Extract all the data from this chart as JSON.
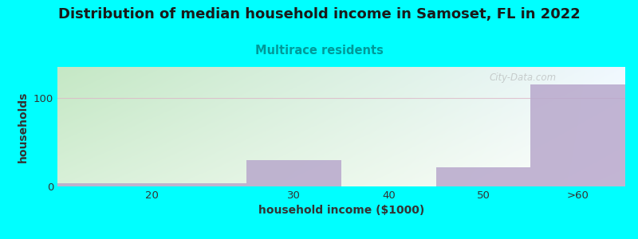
{
  "title": "Distribution of median household income in Samoset, FL in 2022",
  "subtitle": "Multirace residents",
  "xlabel": "household income ($1000)",
  "ylabel": "households",
  "categories": [
    "20",
    "30",
    "40",
    "50",
    ">60"
  ],
  "values": [
    4,
    30,
    0,
    22,
    115
  ],
  "bar_color": "#b8a8cc",
  "bar_alpha": 0.85,
  "bg_color": "#00ffff",
  "plot_bg_top_left": "#c5e8c5",
  "plot_bg_bottom_right": "#f5f5ff",
  "grid_color": "#ddb8c8",
  "grid_alpha": 0.8,
  "title_color": "#1a1a1a",
  "subtitle_color": "#009999",
  "axis_label_color": "#333333",
  "tick_color": "#333333",
  "yticks": [
    0,
    100
  ],
  "ylim": [
    0,
    135
  ],
  "watermark": "City-Data.com",
  "title_fontsize": 13,
  "subtitle_fontsize": 10.5,
  "axis_fontsize": 9.5
}
